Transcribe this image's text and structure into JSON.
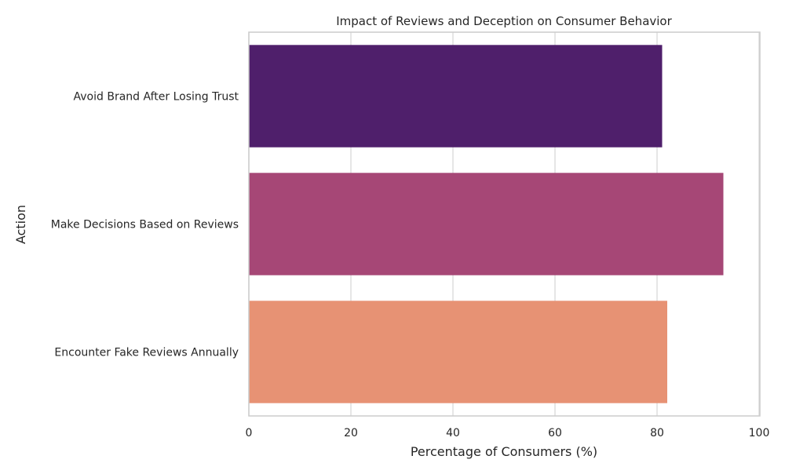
{
  "chart_data": {
    "type": "bar",
    "orientation": "horizontal",
    "title": "Impact of Reviews and Deception on Consumer Behavior",
    "xlabel": "Percentage of Consumers (%)",
    "ylabel": "Action",
    "categories": [
      "Avoid Brand After Losing Trust",
      "Make Decisions Based on Reviews",
      "Encounter Fake Reviews Annually"
    ],
    "values": [
      81,
      93,
      82
    ],
    "colors": [
      "#4f1f6b",
      "#a64776",
      "#e79274"
    ],
    "xlim": [
      0,
      100
    ],
    "xticks": [
      0,
      20,
      40,
      60,
      80,
      100
    ],
    "grid": true,
    "legend": "none"
  }
}
